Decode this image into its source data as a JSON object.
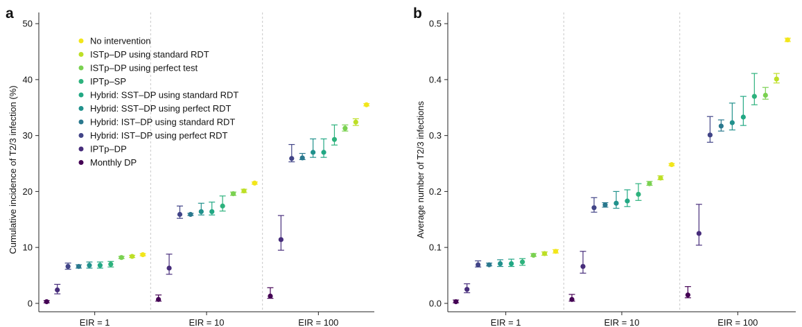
{
  "colors": {
    "none": "#f2e61a",
    "istp_std": "#bddf26",
    "istp_perf": "#7ad151",
    "iptp_sp": "#2db27d",
    "sst_std": "#22a884",
    "sst_perf": "#21918c",
    "ist_std": "#2a788e",
    "ist_perf": "#414487",
    "iptp_dp": "#472d7b",
    "monthly": "#440154"
  },
  "legend": [
    {
      "label": "No intervention",
      "color_key": "none"
    },
    {
      "label": "ISTp–DP using standard RDT",
      "color_key": "istp_std"
    },
    {
      "label": "ISTp–DP using perfect test",
      "color_key": "istp_perf"
    },
    {
      "label": "IPTp–SP",
      "color_key": "iptp_sp"
    },
    {
      "label": "Hybrid: SST–DP using standard RDT",
      "color_key": "sst_std"
    },
    {
      "label": "Hybrid: SST–DP using perfect RDT",
      "color_key": "sst_perf"
    },
    {
      "label": "Hybrid: IST–DP using standard RDT",
      "color_key": "ist_std"
    },
    {
      "label": "Hybrid: IST–DP using perfect RDT",
      "color_key": "ist_perf"
    },
    {
      "label": "IPTp–DP",
      "color_key": "iptp_dp"
    },
    {
      "label": "Monthly DP",
      "color_key": "monthly"
    }
  ],
  "chart_data": [
    {
      "type": "scatter",
      "panel": "a",
      "ylabel": "Cumulative incidence of T2/3 infection (%)",
      "ylim": [
        -1.5,
        52
      ],
      "yticks": [
        0,
        10,
        20,
        30,
        40,
        50
      ],
      "groups": [
        "EIR = 1",
        "EIR = 10",
        "EIR = 100"
      ],
      "series_order": [
        "monthly",
        "iptp_dp",
        "ist_perf",
        "ist_std",
        "sst_perf",
        "sst_std",
        "iptp_sp",
        "istp_perf",
        "istp_std",
        "none"
      ],
      "points": [
        [
          [
            0.3,
            0.1,
            0.5
          ],
          [
            2.4,
            1.7,
            3.4
          ],
          [
            6.6,
            6.1,
            7.2
          ],
          [
            6.6,
            6.3,
            6.9
          ],
          [
            6.8,
            6.3,
            7.4
          ],
          [
            6.8,
            6.3,
            7.4
          ],
          [
            7.0,
            6.5,
            7.5
          ],
          [
            8.2,
            8.0,
            8.4
          ],
          [
            8.4,
            8.2,
            8.6
          ],
          [
            8.7,
            8.5,
            8.9
          ]
        ],
        [
          [
            0.7,
            0.4,
            1.5
          ],
          [
            6.3,
            5.2,
            8.8
          ],
          [
            15.9,
            15.2,
            17.4
          ],
          [
            15.9,
            15.7,
            16.1
          ],
          [
            16.4,
            15.8,
            17.9
          ],
          [
            16.4,
            15.8,
            18.1
          ],
          [
            17.4,
            16.5,
            19.2
          ],
          [
            19.6,
            19.3,
            19.9
          ],
          [
            20.1,
            19.8,
            20.4
          ],
          [
            21.5,
            21.3,
            21.7
          ]
        ],
        [
          [
            1.3,
            0.9,
            2.8
          ],
          [
            11.4,
            9.5,
            15.7
          ],
          [
            25.9,
            25.3,
            28.4
          ],
          [
            26.0,
            25.7,
            26.8
          ],
          [
            27.0,
            26.1,
            29.4
          ],
          [
            27.0,
            26.1,
            29.4
          ],
          [
            29.3,
            28.3,
            31.9
          ],
          [
            31.3,
            30.8,
            31.9
          ],
          [
            32.4,
            31.8,
            33.0
          ],
          [
            35.5,
            35.3,
            35.7
          ]
        ]
      ]
    },
    {
      "type": "scatter",
      "panel": "b",
      "ylabel": "Average number of T2/3 infections",
      "ylim": [
        -0.015,
        0.52
      ],
      "yticks": [
        0.0,
        0.1,
        0.2,
        0.3,
        0.4,
        0.5
      ],
      "ytick_labels": [
        "0.0",
        "0.1",
        "0.2",
        "0.3",
        "0.4",
        "0.5"
      ],
      "groups": [
        "EIR = 1",
        "EIR = 10",
        "EIR = 100"
      ],
      "series_order": [
        "monthly",
        "iptp_dp",
        "ist_perf",
        "ist_std",
        "sst_perf",
        "sst_std",
        "iptp_sp",
        "istp_perf",
        "istp_std",
        "none"
      ],
      "points": [
        [
          [
            0.003,
            0.001,
            0.006
          ],
          [
            0.025,
            0.019,
            0.035
          ],
          [
            0.069,
            0.065,
            0.076
          ],
          [
            0.069,
            0.067,
            0.072
          ],
          [
            0.071,
            0.066,
            0.078
          ],
          [
            0.071,
            0.066,
            0.079
          ],
          [
            0.074,
            0.068,
            0.08
          ],
          [
            0.086,
            0.084,
            0.089
          ],
          [
            0.089,
            0.086,
            0.092
          ],
          [
            0.093,
            0.09,
            0.096
          ]
        ],
        [
          [
            0.007,
            0.004,
            0.016
          ],
          [
            0.066,
            0.054,
            0.093
          ],
          [
            0.171,
            0.163,
            0.189
          ],
          [
            0.176,
            0.172,
            0.18
          ],
          [
            0.179,
            0.17,
            0.2
          ],
          [
            0.183,
            0.173,
            0.203
          ],
          [
            0.195,
            0.184,
            0.214
          ],
          [
            0.214,
            0.211,
            0.218
          ],
          [
            0.224,
            0.221,
            0.228
          ],
          [
            0.248,
            0.246,
            0.25
          ]
        ],
        [
          [
            0.015,
            0.01,
            0.03
          ],
          [
            0.125,
            0.104,
            0.177
          ],
          [
            0.301,
            0.288,
            0.334
          ],
          [
            0.317,
            0.308,
            0.328
          ],
          [
            0.323,
            0.31,
            0.358
          ],
          [
            0.333,
            0.318,
            0.37
          ],
          [
            0.37,
            0.355,
            0.411
          ],
          [
            0.372,
            0.365,
            0.386
          ],
          [
            0.401,
            0.394,
            0.411
          ],
          [
            0.471,
            0.468,
            0.474
          ]
        ]
      ]
    }
  ]
}
